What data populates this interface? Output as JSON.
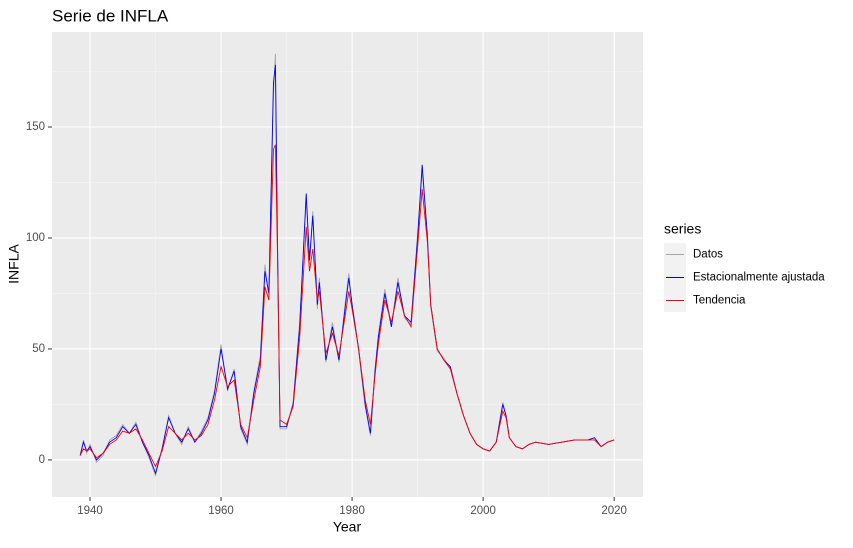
{
  "chart_data": {
    "type": "line",
    "title": "Serie de INFLA",
    "x_label": "Year",
    "y_label": "INFLA",
    "legend_title": "series",
    "legend_position": "right",
    "grid": true,
    "xlim": [
      1934.2,
      2024.4
    ],
    "xticks": [
      1940,
      1960,
      1980,
      2000,
      2020
    ],
    "ylim": [
      -16.7,
      192.8
    ],
    "yticks": [
      0,
      50,
      100,
      150
    ],
    "x": [
      1938.5,
      1939,
      1939.5,
      1940,
      1941,
      1942,
      1943,
      1944,
      1945,
      1946,
      1947,
      1948,
      1949,
      1950,
      1951,
      1952,
      1953,
      1954,
      1955,
      1956,
      1957,
      1958,
      1959,
      1960,
      1961,
      1962,
      1963,
      1964,
      1965,
      1966,
      1966.7,
      1967.3,
      1968,
      1968.3,
      1968.6,
      1969,
      1970,
      1971,
      1972,
      1973,
      1973.5,
      1974,
      1974.7,
      1975,
      1976,
      1977,
      1978,
      1979,
      1979.5,
      1980,
      1981,
      1982,
      1982.8,
      1983.5,
      1984,
      1985,
      1986,
      1987,
      1988,
      1989,
      1990,
      1990.7,
      1991.5,
      1992,
      1993,
      1994,
      1995,
      1996,
      1997,
      1998,
      1999,
      2000,
      2001,
      2002,
      2003,
      2003.5,
      2004,
      2005,
      2006,
      2007,
      2008,
      2010,
      2012,
      2014,
      2016,
      2017,
      2018,
      2019,
      2020
    ],
    "series": [
      {
        "name": "Datos",
        "color": "#a6a6a6",
        "values": [
          2,
          9,
          3,
          7,
          -1,
          2,
          9,
          11,
          16,
          12,
          17,
          8,
          1,
          -7,
          5,
          20,
          12,
          7,
          15,
          8,
          13,
          19,
          31,
          52,
          31,
          41,
          14,
          7,
          31,
          47,
          88,
          74,
          165,
          183,
          104,
          14,
          14,
          26,
          62,
          118,
          88,
          112,
          68,
          82,
          44,
          62,
          44,
          72,
          84,
          70,
          49,
          24,
          11,
          41,
          56,
          77,
          60,
          82,
          64,
          61,
          102,
          130,
          102,
          69,
          49,
          46,
          41,
          30,
          20,
          12,
          7,
          5,
          4,
          8,
          26,
          20,
          10,
          6,
          5,
          7,
          8,
          7,
          8,
          9,
          9,
          10,
          6,
          8,
          9
        ]
      },
      {
        "name": "Estacionalmente ajustada",
        "color": "#0000ff",
        "values": [
          2,
          8,
          4,
          6,
          0,
          3,
          8,
          10,
          15,
          12,
          16,
          8,
          2,
          -6,
          5,
          19,
          12,
          8,
          14,
          8,
          12,
          18,
          30,
          50,
          32,
          40,
          15,
          8,
          30,
          45,
          85,
          75,
          170,
          178,
          100,
          15,
          15,
          25,
          60,
          120,
          90,
          110,
          70,
          80,
          45,
          60,
          45,
          70,
          82,
          70,
          50,
          25,
          12,
          40,
          55,
          75,
          60,
          80,
          65,
          62,
          100,
          133,
          100,
          70,
          50,
          45,
          42,
          30,
          20,
          12,
          7,
          5,
          4,
          8,
          25,
          20,
          10,
          6,
          5,
          7,
          8,
          7,
          8,
          9,
          9,
          10,
          6,
          8,
          9
        ]
      },
      {
        "name": "Tendencia",
        "color": "#ff0000",
        "values": [
          2,
          5,
          4,
          5,
          1,
          3,
          7,
          9,
          13,
          12,
          14,
          9,
          3,
          -3,
          4,
          15,
          12,
          9,
          12,
          9,
          11,
          16,
          27,
          42,
          33,
          36,
          16,
          10,
          27,
          42,
          78,
          72,
          140,
          142,
          95,
          18,
          16,
          24,
          55,
          105,
          85,
          95,
          72,
          76,
          48,
          57,
          47,
          66,
          76,
          68,
          50,
          27,
          16,
          38,
          52,
          72,
          62,
          76,
          65,
          60,
          96,
          122,
          98,
          70,
          50,
          45,
          41,
          30,
          20,
          12,
          7,
          5,
          4,
          8,
          22,
          19,
          10,
          6,
          5,
          7,
          8,
          7,
          8,
          9,
          9,
          9,
          6,
          8,
          9
        ]
      }
    ]
  }
}
